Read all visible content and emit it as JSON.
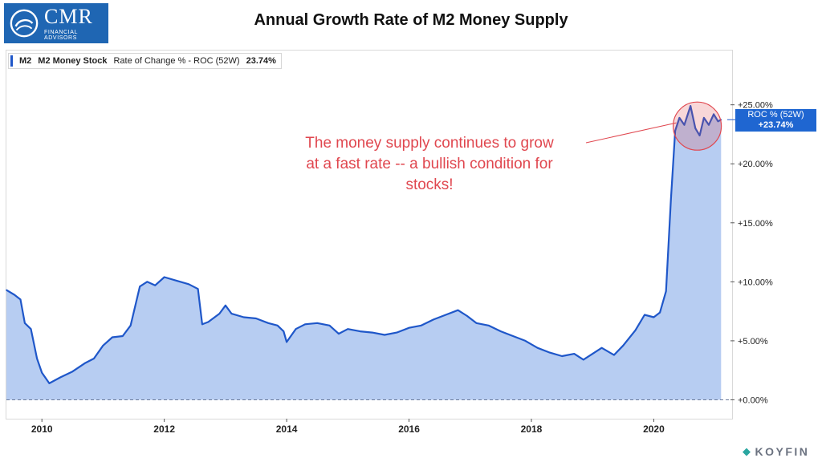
{
  "logo": {
    "name": "CMR",
    "subtitle": "FINANCIAL ADVISORS",
    "color": "#1f66b3"
  },
  "title": "Annual Growth Rate of M2 Money Supply",
  "legend": {
    "symbol": "M2",
    "name": "M2 Money Stock",
    "indicator": "Rate of Change % - ROC (52W)",
    "value": "23.74%"
  },
  "annotation": {
    "lines": [
      "The money supply continues to grow",
      "at a fast rate -- a bullish condition for",
      "stocks!"
    ],
    "color": "#e0474f"
  },
  "badge": {
    "label": "ROC % (52W)",
    "value": "+23.74%",
    "color": "#1f66d1"
  },
  "branding": {
    "name": "KOYFIN",
    "mark": "koyfin-logo-icon"
  },
  "chart_data": {
    "type": "area",
    "title": "Annual Growth Rate of M2 Money Supply",
    "xlabel": "",
    "ylabel": "",
    "x_ticks": [
      "2010",
      "2012",
      "2014",
      "2016",
      "2018",
      "2020"
    ],
    "y_ticks": [
      "+0.00%",
      "+5.00%",
      "+10.00%",
      "+15.00%",
      "+20.00%",
      "+25.00%"
    ],
    "xlim": [
      2009.42,
      2021.28
    ],
    "ylim": [
      -1.6,
      29.6
    ],
    "grid": false,
    "line_color": "#1f57c9",
    "fill_color": "#b7cdf2",
    "zero_line": "dashed",
    "series": [
      {
        "name": "M2 Money Stock",
        "points": [
          [
            2009.42,
            9.3
          ],
          [
            2009.55,
            8.9
          ],
          [
            2009.65,
            8.5
          ],
          [
            2009.72,
            6.5
          ],
          [
            2009.82,
            6.0
          ],
          [
            2009.92,
            3.5
          ],
          [
            2010.0,
            2.3
          ],
          [
            2010.12,
            1.4
          ],
          [
            2010.3,
            1.9
          ],
          [
            2010.5,
            2.4
          ],
          [
            2010.7,
            3.1
          ],
          [
            2010.85,
            3.5
          ],
          [
            2011.0,
            4.6
          ],
          [
            2011.15,
            5.3
          ],
          [
            2011.32,
            5.4
          ],
          [
            2011.45,
            6.3
          ],
          [
            2011.6,
            9.6
          ],
          [
            2011.72,
            10.0
          ],
          [
            2011.85,
            9.7
          ],
          [
            2012.0,
            10.4
          ],
          [
            2012.2,
            10.1
          ],
          [
            2012.4,
            9.8
          ],
          [
            2012.55,
            9.4
          ],
          [
            2012.62,
            6.4
          ],
          [
            2012.72,
            6.6
          ],
          [
            2012.9,
            7.3
          ],
          [
            2013.0,
            8.0
          ],
          [
            2013.1,
            7.3
          ],
          [
            2013.3,
            7.0
          ],
          [
            2013.5,
            6.9
          ],
          [
            2013.7,
            6.5
          ],
          [
            2013.85,
            6.3
          ],
          [
            2013.95,
            5.8
          ],
          [
            2014.0,
            4.9
          ],
          [
            2014.15,
            6.0
          ],
          [
            2014.3,
            6.4
          ],
          [
            2014.5,
            6.5
          ],
          [
            2014.7,
            6.3
          ],
          [
            2014.85,
            5.6
          ],
          [
            2015.0,
            6.0
          ],
          [
            2015.2,
            5.8
          ],
          [
            2015.4,
            5.7
          ],
          [
            2015.6,
            5.5
          ],
          [
            2015.8,
            5.7
          ],
          [
            2016.0,
            6.1
          ],
          [
            2016.2,
            6.3
          ],
          [
            2016.4,
            6.8
          ],
          [
            2016.6,
            7.2
          ],
          [
            2016.8,
            7.6
          ],
          [
            2016.95,
            7.1
          ],
          [
            2017.1,
            6.5
          ],
          [
            2017.3,
            6.3
          ],
          [
            2017.5,
            5.8
          ],
          [
            2017.7,
            5.4
          ],
          [
            2017.9,
            5.0
          ],
          [
            2018.1,
            4.4
          ],
          [
            2018.3,
            4.0
          ],
          [
            2018.5,
            3.7
          ],
          [
            2018.7,
            3.9
          ],
          [
            2018.85,
            3.4
          ],
          [
            2019.0,
            3.9
          ],
          [
            2019.15,
            4.4
          ],
          [
            2019.35,
            3.8
          ],
          [
            2019.5,
            4.6
          ],
          [
            2019.7,
            5.9
          ],
          [
            2019.85,
            7.2
          ],
          [
            2020.0,
            7.0
          ],
          [
            2020.1,
            7.4
          ],
          [
            2020.2,
            9.2
          ],
          [
            2020.28,
            17.0
          ],
          [
            2020.35,
            22.8
          ],
          [
            2020.42,
            23.9
          ],
          [
            2020.5,
            23.3
          ],
          [
            2020.6,
            24.9
          ],
          [
            2020.68,
            23.0
          ],
          [
            2020.75,
            22.4
          ],
          [
            2020.82,
            23.9
          ],
          [
            2020.9,
            23.3
          ],
          [
            2020.98,
            24.2
          ],
          [
            2021.05,
            23.6
          ],
          [
            2021.1,
            23.74
          ]
        ]
      }
    ],
    "highlight": {
      "center": [
        2020.71,
        23.2
      ],
      "color": "#e0474f"
    }
  }
}
